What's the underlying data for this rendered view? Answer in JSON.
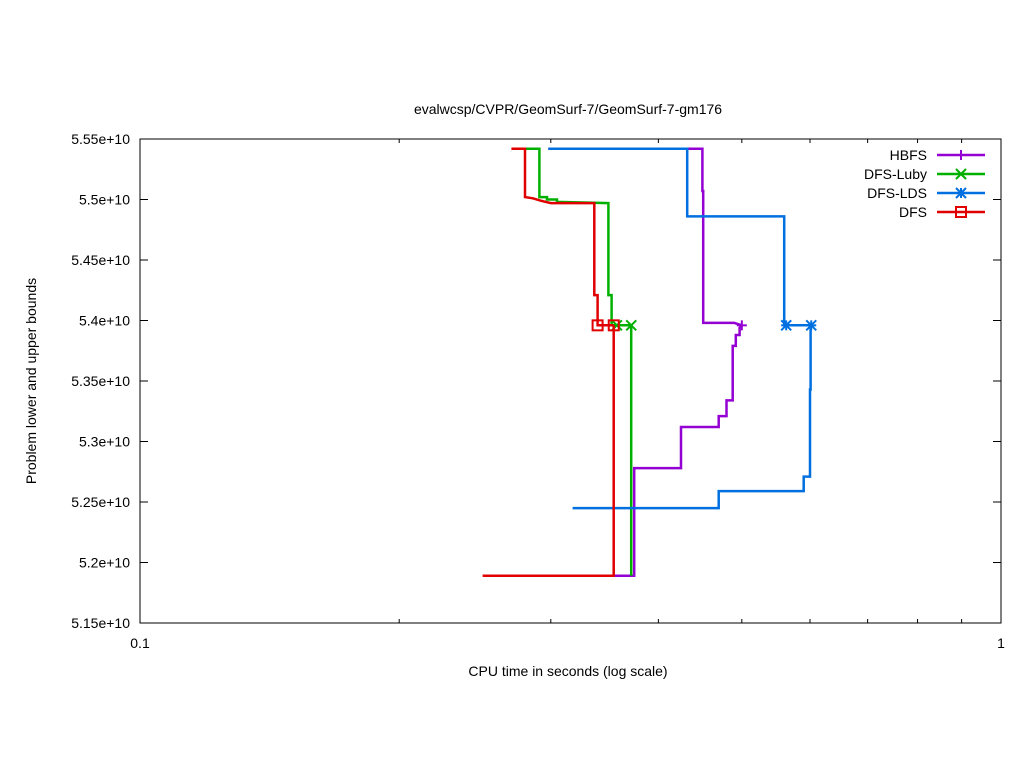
{
  "chart_data": {
    "type": "line",
    "title": "evalwcsp/CVPR/GeomSurf-7/GeomSurf-7-gm176",
    "xlabel": "CPU time in seconds (log scale)",
    "ylabel": "Problem lower and upper bounds",
    "x_scale": "log",
    "xlim": [
      0.1,
      1
    ],
    "ylim": [
      51500000000,
      55500000000
    ],
    "x_ticks": [
      {
        "value": 0.1,
        "label": "0.1"
      },
      {
        "value": 1,
        "label": "1"
      }
    ],
    "y_ticks": [
      {
        "value": 51500000000,
        "label": "5.15e+10"
      },
      {
        "value": 52000000000,
        "label": "5.2e+10"
      },
      {
        "value": 52500000000,
        "label": "5.25e+10"
      },
      {
        "value": 53000000000,
        "label": "5.3e+10"
      },
      {
        "value": 53500000000,
        "label": "5.35e+10"
      },
      {
        "value": 54000000000,
        "label": "5.4e+10"
      },
      {
        "value": 54500000000,
        "label": "5.45e+10"
      },
      {
        "value": 55000000000,
        "label": "5.5e+10"
      },
      {
        "value": 55500000000,
        "label": "5.55e+10"
      }
    ],
    "grid": false,
    "legend": "top-right",
    "series": [
      {
        "name": "HBFS",
        "color": "#9400d3",
        "marker": "plus",
        "upper": [
          [
            0.298,
            55420000000
          ],
          [
            0.45,
            55420000000
          ],
          [
            0.45,
            55070000000
          ],
          [
            0.451,
            55070000000
          ],
          [
            0.451,
            53980000000
          ],
          [
            0.49,
            53980000000
          ],
          [
            0.5,
            53960000000
          ]
        ],
        "lower": [
          [
            0.355,
            51890000000
          ],
          [
            0.375,
            51890000000
          ],
          [
            0.375,
            52780000000
          ],
          [
            0.425,
            52780000000
          ],
          [
            0.425,
            53120000000
          ],
          [
            0.47,
            53120000000
          ],
          [
            0.47,
            53210000000
          ],
          [
            0.48,
            53210000000
          ],
          [
            0.48,
            53340000000
          ],
          [
            0.488,
            53340000000
          ],
          [
            0.488,
            53790000000
          ],
          [
            0.492,
            53790000000
          ],
          [
            0.492,
            53880000000
          ],
          [
            0.497,
            53880000000
          ],
          [
            0.497,
            53940000000
          ],
          [
            0.5,
            53960000000
          ]
        ],
        "markers": [
          [
            0.5,
            53960000000
          ]
        ]
      },
      {
        "name": "DFS-Luby",
        "color": "#00b000",
        "marker": "x",
        "upper": [
          [
            0.278,
            55420000000
          ],
          [
            0.291,
            55420000000
          ],
          [
            0.291,
            55020000000
          ],
          [
            0.297,
            55020000000
          ],
          [
            0.297,
            55000000000
          ],
          [
            0.305,
            55000000000
          ],
          [
            0.305,
            54980000000
          ],
          [
            0.35,
            54970000000
          ],
          [
            0.35,
            54210000000
          ],
          [
            0.353,
            54210000000
          ],
          [
            0.353,
            53960000000
          ],
          [
            0.372,
            53960000000
          ]
        ],
        "lower": [
          [
            0.372,
            51890000000
          ],
          [
            0.372,
            53960000000
          ]
        ],
        "markers": [
          [
            0.358,
            53960000000
          ],
          [
            0.372,
            53960000000
          ]
        ]
      },
      {
        "name": "DFS-LDS",
        "color": "#0070e0",
        "marker": "star",
        "upper": [
          [
            0.298,
            55420000000
          ],
          [
            0.432,
            55420000000
          ],
          [
            0.432,
            54860000000
          ],
          [
            0.56,
            54860000000
          ],
          [
            0.56,
            53960000000
          ],
          [
            0.6,
            53960000000
          ]
        ],
        "lower": [
          [
            0.318,
            52450000000
          ],
          [
            0.47,
            52450000000
          ],
          [
            0.47,
            52590000000
          ],
          [
            0.59,
            52590000000
          ],
          [
            0.59,
            52710000000
          ],
          [
            0.6,
            52710000000
          ],
          [
            0.6,
            53430000000
          ],
          [
            0.601,
            53430000000
          ],
          [
            0.601,
            53960000000
          ]
        ],
        "markers": [
          [
            0.563,
            53960000000
          ],
          [
            0.602,
            53960000000
          ]
        ]
      },
      {
        "name": "DFS",
        "color": "#e00000",
        "marker": "square",
        "upper": [
          [
            0.27,
            55420000000
          ],
          [
            0.28,
            55420000000
          ],
          [
            0.28,
            55020000000
          ],
          [
            0.286,
            55010000000
          ],
          [
            0.292,
            54990000000
          ],
          [
            0.3,
            54970000000
          ],
          [
            0.337,
            54970000000
          ],
          [
            0.337,
            54210000000
          ],
          [
            0.34,
            54210000000
          ],
          [
            0.34,
            53960000000
          ],
          [
            0.355,
            53960000000
          ]
        ],
        "lower": [
          [
            0.25,
            51890000000
          ],
          [
            0.355,
            51890000000
          ],
          [
            0.355,
            53960000000
          ]
        ],
        "markers": [
          [
            0.34,
            53960000000
          ],
          [
            0.355,
            53960000000
          ]
        ]
      }
    ]
  }
}
